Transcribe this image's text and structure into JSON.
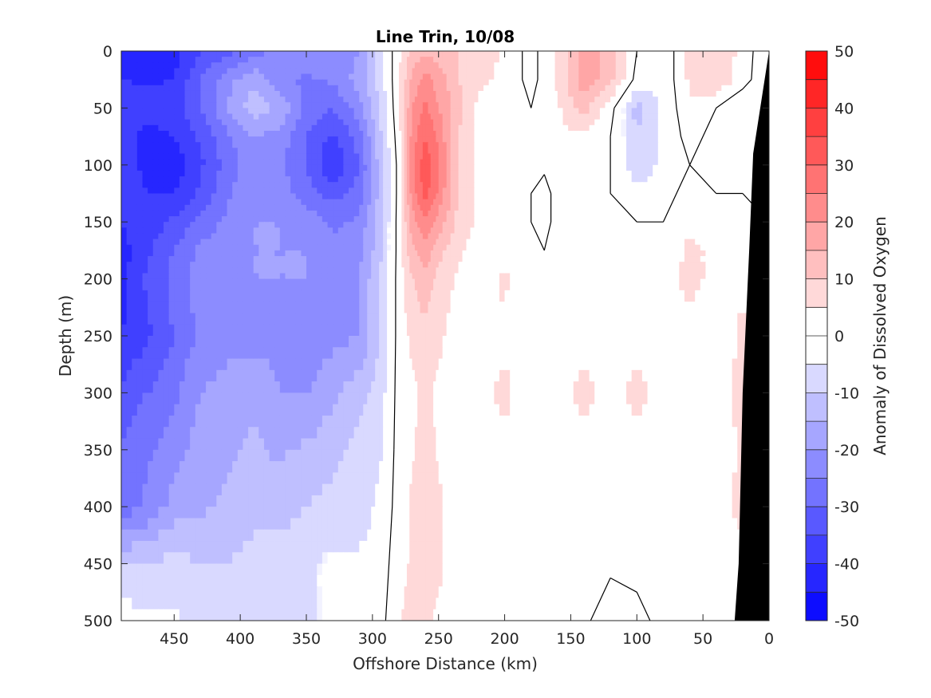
{
  "chart_data": {
    "type": "heatmap",
    "title": "Line Trin, 10/08",
    "xlabel": "Offshore Distance (km)",
    "ylabel": "Depth (m)",
    "colorbar_label": "Anomaly of Dissolved Oxygen",
    "xlim": [
      490,
      0
    ],
    "ylim": [
      0,
      500
    ],
    "x_ticks": [
      450,
      400,
      350,
      300,
      250,
      200,
      150,
      100,
      50,
      0
    ],
    "y_ticks": [
      0,
      50,
      100,
      150,
      200,
      250,
      300,
      350,
      400,
      450,
      500
    ],
    "colorbar_range": [
      -50,
      50
    ],
    "colorbar_ticks": [
      50,
      40,
      30,
      20,
      10,
      0,
      -10,
      -20,
      -30,
      -40,
      -50
    ],
    "contour_levels": [
      -50,
      -45,
      -40,
      -35,
      -30,
      -25,
      -20,
      -15,
      -10,
      -5,
      5,
      10,
      15,
      20,
      25,
      30,
      35,
      40,
      45,
      50
    ],
    "zero_contour": true,
    "land_mask_color": "#000000",
    "colors": {
      "negative_extreme": "#0000ff",
      "neutral": "#ffffff",
      "positive_extreme": "#ff0000"
    },
    "x_grid": [
      490,
      470,
      450,
      430,
      410,
      390,
      370,
      350,
      330,
      310,
      295,
      280,
      270,
      260,
      250,
      235,
      220,
      200,
      180,
      170,
      160,
      140,
      120,
      100,
      80,
      60,
      40,
      20,
      0
    ],
    "y_grid": [
      0,
      25,
      50,
      75,
      100,
      125,
      150,
      175,
      200,
      250,
      300,
      350,
      400,
      450,
      500
    ],
    "values": [
      [
        -42,
        -43,
        -42,
        -36,
        -32,
        -28,
        -22,
        -20,
        -22,
        -20,
        -8,
        4,
        12,
        14,
        12,
        10,
        8,
        4,
        -2,
        2,
        6,
        16,
        14,
        0,
        -4,
        6,
        8,
        4,
        -6
      ],
      [
        -40,
        -41,
        -40,
        -30,
        -22,
        -16,
        -24,
        -26,
        -24,
        -18,
        -8,
        4,
        16,
        22,
        18,
        10,
        6,
        4,
        -2,
        2,
        6,
        18,
        12,
        -2,
        -4,
        6,
        10,
        2,
        -4
      ],
      [
        -37,
        -38,
        -37,
        -30,
        -20,
        -12,
        -16,
        -26,
        -30,
        -22,
        -10,
        4,
        20,
        26,
        20,
        12,
        4,
        2,
        0,
        2,
        4,
        12,
        2,
        -12,
        -4,
        4,
        0,
        -4,
        -2
      ],
      [
        -38,
        -42,
        -40,
        -34,
        -26,
        -20,
        -22,
        -30,
        -36,
        -28,
        -12,
        3,
        22,
        30,
        24,
        10,
        4,
        2,
        0,
        2,
        4,
        4,
        0,
        -10,
        -4,
        2,
        -2,
        -4,
        -2
      ],
      [
        -36,
        -42,
        -44,
        -36,
        -28,
        -22,
        -24,
        -30,
        -40,
        -30,
        -14,
        2,
        24,
        34,
        26,
        10,
        4,
        2,
        0,
        1,
        3,
        4,
        0,
        -8,
        -4,
        0,
        -4,
        -4,
        -2
      ],
      [
        -38,
        -40,
        -40,
        -34,
        -26,
        -20,
        -22,
        -28,
        -32,
        -28,
        -14,
        2,
        22,
        32,
        24,
        10,
        4,
        2,
        0,
        -2,
        2,
        4,
        0,
        -4,
        -2,
        2,
        0,
        0,
        -2
      ],
      [
        -40,
        -38,
        -34,
        -28,
        -24,
        -20,
        -20,
        -22,
        -26,
        -24,
        -12,
        2,
        18,
        24,
        18,
        8,
        4,
        2,
        0,
        -2,
        2,
        2,
        0,
        0,
        0,
        4,
        4,
        2,
        0
      ],
      [
        -42,
        -36,
        -30,
        -24,
        -22,
        -20,
        -20,
        -20,
        -24,
        -22,
        -12,
        2,
        14,
        18,
        12,
        6,
        2,
        2,
        0,
        0,
        2,
        2,
        0,
        0,
        2,
        6,
        4,
        2,
        2
      ],
      [
        -42,
        -34,
        -28,
        -22,
        -20,
        -20,
        -20,
        -20,
        -22,
        -20,
        -10,
        2,
        10,
        14,
        8,
        4,
        2,
        6,
        0,
        0,
        2,
        2,
        0,
        2,
        4,
        6,
        4,
        4,
        2
      ],
      [
        -40,
        -36,
        -30,
        -24,
        -22,
        -22,
        -22,
        -24,
        -22,
        -20,
        -10,
        2,
        6,
        8,
        6,
        2,
        2,
        4,
        0,
        0,
        2,
        4,
        2,
        4,
        4,
        4,
        2,
        6,
        2
      ],
      [
        -34,
        -30,
        -26,
        -20,
        -18,
        -16,
        -20,
        -20,
        -16,
        -12,
        -8,
        2,
        4,
        6,
        4,
        2,
        4,
        6,
        2,
        2,
        4,
        6,
        4,
        6,
        4,
        4,
        4,
        6,
        4
      ],
      [
        -30,
        -26,
        -22,
        -18,
        -16,
        -14,
        -16,
        -14,
        -12,
        -8,
        -6,
        2,
        4,
        8,
        4,
        0,
        2,
        4,
        2,
        2,
        2,
        4,
        2,
        4,
        2,
        2,
        2,
        6,
        4
      ],
      [
        -28,
        -24,
        -18,
        -16,
        -14,
        -12,
        -12,
        -10,
        -8,
        -8,
        -4,
        2,
        6,
        10,
        6,
        2,
        0,
        2,
        2,
        2,
        2,
        2,
        2,
        2,
        2,
        2,
        4,
        6,
        4
      ],
      [
        -10,
        -10,
        -8,
        -10,
        -10,
        -8,
        -8,
        -6,
        -4,
        -4,
        -2,
        2,
        6,
        10,
        6,
        2,
        0,
        2,
        2,
        2,
        2,
        2,
        2,
        2,
        4,
        2,
        4,
        4,
        4
      ],
      [
        -2,
        -4,
        -4,
        -8,
        -6,
        -6,
        -6,
        -6,
        -4,
        -2,
        -2,
        4,
        8,
        6,
        4,
        2,
        0,
        2,
        2,
        2,
        2,
        2,
        -6,
        -2,
        2,
        4,
        4,
        4,
        4
      ]
    ],
    "land_boundary": [
      [
        0,
        0
      ],
      [
        12,
        90
      ],
      [
        15,
        175
      ],
      [
        20,
        300
      ],
      [
        23,
        450
      ],
      [
        26,
        500
      ],
      [
        0,
        500
      ]
    ]
  }
}
